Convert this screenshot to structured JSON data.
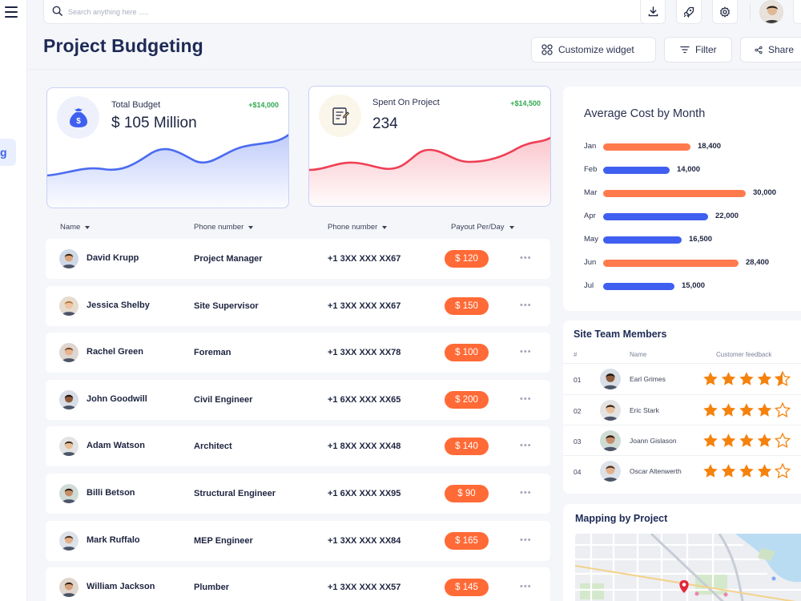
{
  "search": {
    "placeholder": "Search anything here ....."
  },
  "header": {
    "title": "Project Budgeting",
    "buttons": {
      "customize": "Customize widget",
      "filter": "Filter",
      "share": "Share"
    }
  },
  "sidebar": {
    "active_label": "g"
  },
  "kpis": [
    {
      "label": "Total Budget",
      "value": "$ 105 Million",
      "delta": "+$14,000",
      "accent": "#4a6cf0"
    },
    {
      "label": "Spent On Project",
      "value": "234",
      "delta": "+$14,500",
      "accent": "#ef3f55"
    }
  ],
  "table": {
    "headers": [
      "Name",
      "Phone number",
      "Phone number",
      "Payout Per/Day"
    ],
    "more_label": "•••",
    "rows": [
      {
        "name": "David Krupp",
        "role": "Project Manager",
        "phone": "+1 3XX XXX XX67",
        "payout": "$ 120"
      },
      {
        "name": "Jessica Shelby",
        "role": "Site Supervisor",
        "phone": "+1 3XX XXX XX67",
        "payout": "$ 150"
      },
      {
        "name": "Rachel Green",
        "role": "Foreman",
        "phone": "+1 3XX XXX XX78",
        "payout": "$ 100"
      },
      {
        "name": "John Goodwill",
        "role": "Civil Engineer",
        "phone": "+1 6XX XXX XX65",
        "payout": "$ 200"
      },
      {
        "name": "Adam Watson",
        "role": "Architect",
        "phone": "+1 8XX XXX XX48",
        "payout": "$ 140"
      },
      {
        "name": "Billi Betson",
        "role": "Structural Engineer",
        "phone": "+1 6XX XXX XX95",
        "payout": "$ 90"
      },
      {
        "name": "Mark Ruffalo",
        "role": "MEP Engineer",
        "phone": "+1 3XX XXX XX84",
        "payout": "$ 165"
      },
      {
        "name": "William Jackson",
        "role": "Plumber",
        "phone": "+1 3XX XXX XX57",
        "payout": "$ 145"
      }
    ]
  },
  "avg_cost": {
    "title": "Average Cost by Month",
    "colors": {
      "orange": "#ff7a4d",
      "blue": "#3f5ff0"
    }
  },
  "chart_data": {
    "type": "bar",
    "title": "Average Cost by Month",
    "orientation": "horizontal",
    "categories": [
      "Jan",
      "Feb",
      "Mar",
      "Apr",
      "May",
      "Jun",
      "Jul"
    ],
    "values": [
      18400,
      14000,
      30000,
      22000,
      16500,
      28400,
      15000
    ],
    "value_labels": [
      "18,400",
      "14,000",
      "30,000",
      "22,000",
      "16,500",
      "28,400",
      "15,000"
    ],
    "bar_colors": [
      "#ff7a4d",
      "#3f5ff0",
      "#ff7a4d",
      "#3f5ff0",
      "#3f5ff0",
      "#ff7a4d",
      "#3f5ff0"
    ],
    "xlim": [
      0,
      30000
    ],
    "xlabel": "",
    "ylabel": "",
    "grid": false
  },
  "team": {
    "title": "Site Team Members",
    "headers": {
      "index": "#",
      "name": "Name",
      "feedback": "Customer feedback"
    },
    "rows": [
      {
        "index": "01",
        "name": "Earl Grimes",
        "rating": 4.5
      },
      {
        "index": "02",
        "name": "Eric Stark",
        "rating": 4
      },
      {
        "index": "03",
        "name": "Joann Gislason",
        "rating": 4
      },
      {
        "index": "04",
        "name": "Oscar Altenwerth",
        "rating": 4
      }
    ]
  },
  "mapping": {
    "title": "Mapping by Project"
  },
  "icons": {
    "menu": "hamburger-icon",
    "search": "search-icon",
    "download": "download-icon",
    "rocket": "rocket-icon",
    "settings": "gear-icon",
    "customize": "grid-icon",
    "filter": "filter-icon",
    "share": "share-icon",
    "budget": "money-bag-icon",
    "spent": "receipt-icon",
    "more": "more-icon",
    "pin": "map-pin-icon",
    "star": "star-icon"
  }
}
